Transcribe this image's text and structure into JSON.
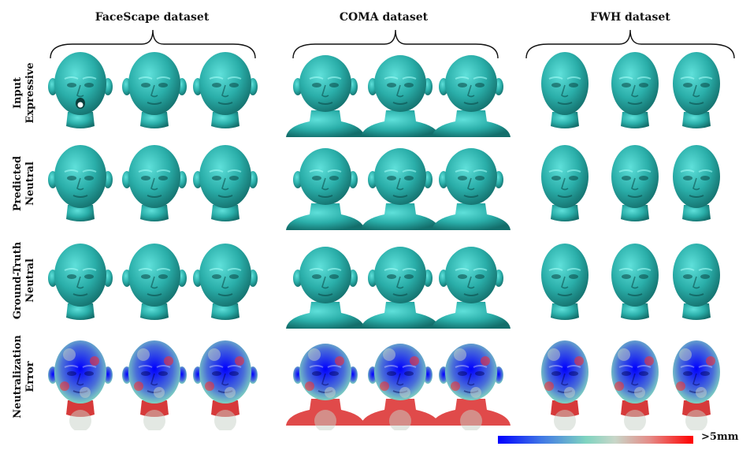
{
  "datasets": [
    {
      "title": "FaceScape dataset"
    },
    {
      "title": "COMA dataset"
    },
    {
      "title": "FWH dataset"
    }
  ],
  "rows": [
    {
      "line1": "Input",
      "line2": "Expressive",
      "kind": "mesh"
    },
    {
      "line1": "Predicted",
      "line2": "Neutral",
      "kind": "mesh"
    },
    {
      "line1": "Ground-Truth",
      "line2": "Neutral",
      "kind": "mesh"
    },
    {
      "line1": "Neutralization",
      "line2": "Error",
      "kind": "error"
    }
  ],
  "colors": {
    "mesh_light": "#5fe0da",
    "mesh": "#2aaea9",
    "mesh_dark": "#136e6b",
    "error_low": "#0000ff",
    "error_mid": "#7fd4c0",
    "error_high": "#ff0000"
  },
  "colorbar": {
    "max_label": ">5mm"
  }
}
